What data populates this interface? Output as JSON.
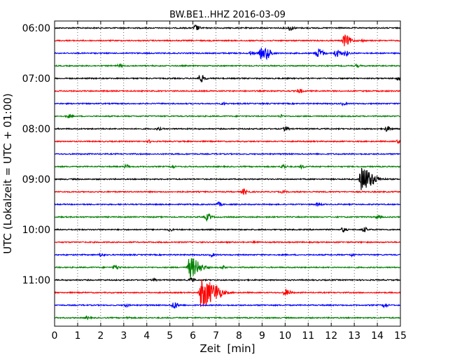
{
  "chart_data": {
    "type": "line",
    "title": "BW.BE1..HHZ 2016-03-09",
    "xlabel": "Zeit  [min]",
    "ylabel": "UTC (Lokalzeit = UTC + 01:00)",
    "xlim": [
      0,
      15
    ],
    "x_ticks": [
      0,
      1,
      2,
      3,
      4,
      5,
      6,
      7,
      8,
      9,
      10,
      11,
      12,
      13,
      14,
      15
    ],
    "grid": true,
    "grid_style": "dotted",
    "y_tick_labels": [
      "06:00",
      "07:00",
      "08:00",
      "09:00",
      "10:00",
      "11:00"
    ],
    "trace_interval_min": 15,
    "colors": [
      "#000000",
      "#ff0000",
      "#0000ff",
      "#008000"
    ],
    "traces": [
      {
        "start": "06:00",
        "events": [
          [
            6.1,
            0.45
          ],
          [
            10.2,
            0.4
          ]
        ]
      },
      {
        "start": "06:15",
        "events": [
          [
            12.55,
            0.9
          ],
          [
            13.3,
            0.2
          ]
        ]
      },
      {
        "start": "06:30",
        "events": [
          [
            8.5,
            0.3
          ],
          [
            8.95,
            0.8
          ],
          [
            9.2,
            0.6
          ],
          [
            11.4,
            0.75
          ],
          [
            12.2,
            0.6
          ],
          [
            12.6,
            0.4
          ]
        ]
      },
      {
        "start": "06:45",
        "events": [
          [
            2.8,
            0.25
          ],
          [
            13.1,
            0.2
          ]
        ]
      },
      {
        "start": "07:00",
        "events": [
          [
            6.3,
            0.55
          ],
          [
            14.9,
            0.3
          ]
        ]
      },
      {
        "start": "07:15",
        "events": [
          [
            10.6,
            0.35
          ]
        ]
      },
      {
        "start": "07:30",
        "events": [
          [
            7.3,
            0.2
          ],
          [
            12.5,
            0.2
          ]
        ]
      },
      {
        "start": "07:45",
        "events": [
          [
            0.6,
            0.25
          ],
          [
            9.8,
            0.2
          ]
        ]
      },
      {
        "start": "08:00",
        "events": [
          [
            4.5,
            0.2
          ],
          [
            10.0,
            0.35
          ],
          [
            14.4,
            0.4
          ]
        ]
      },
      {
        "start": "08:15",
        "events": [
          [
            4.1,
            0.2
          ],
          [
            14.9,
            0.25
          ]
        ]
      },
      {
        "start": "08:30",
        "events": []
      },
      {
        "start": "08:45",
        "events": [
          [
            3.1,
            0.3
          ],
          [
            5.1,
            0.2
          ],
          [
            9.9,
            0.3
          ],
          [
            10.7,
            0.25
          ]
        ]
      },
      {
        "start": "09:00",
        "events": [
          [
            13.3,
            1.9
          ]
        ]
      },
      {
        "start": "09:15",
        "events": [
          [
            8.2,
            0.45
          ],
          [
            9.9,
            0.2
          ]
        ]
      },
      {
        "start": "09:30",
        "events": [
          [
            7.1,
            0.3
          ],
          [
            11.4,
            0.3
          ]
        ]
      },
      {
        "start": "09:45",
        "events": [
          [
            6.6,
            0.5
          ],
          [
            14.0,
            0.25
          ]
        ]
      },
      {
        "start": "10:00",
        "events": [
          [
            5.0,
            0.2
          ],
          [
            12.5,
            0.35
          ],
          [
            13.4,
            0.35
          ]
        ]
      },
      {
        "start": "10:15",
        "events": [
          [
            8.7,
            0.2
          ]
        ]
      },
      {
        "start": "10:30",
        "events": [
          [
            2.0,
            0.3
          ],
          [
            6.8,
            0.25
          ],
          [
            12.9,
            0.2
          ]
        ]
      },
      {
        "start": "10:45",
        "events": [
          [
            2.6,
            0.4
          ],
          [
            5.85,
            1.6
          ],
          [
            7.3,
            0.2
          ]
        ]
      },
      {
        "start": "11:00",
        "events": [
          [
            4.3,
            0.2
          ],
          [
            5.9,
            0.3
          ]
        ]
      },
      {
        "start": "11:15",
        "events": [
          [
            6.35,
            2.3
          ],
          [
            7.0,
            0.6
          ],
          [
            10.0,
            0.55
          ]
        ]
      },
      {
        "start": "11:30",
        "events": [
          [
            3.1,
            0.2
          ],
          [
            5.15,
            0.55
          ],
          [
            14.3,
            0.3
          ]
        ]
      },
      {
        "start": "11:45",
        "events": [
          [
            1.4,
            0.2
          ],
          [
            3.2,
            0.15
          ]
        ]
      }
    ]
  }
}
